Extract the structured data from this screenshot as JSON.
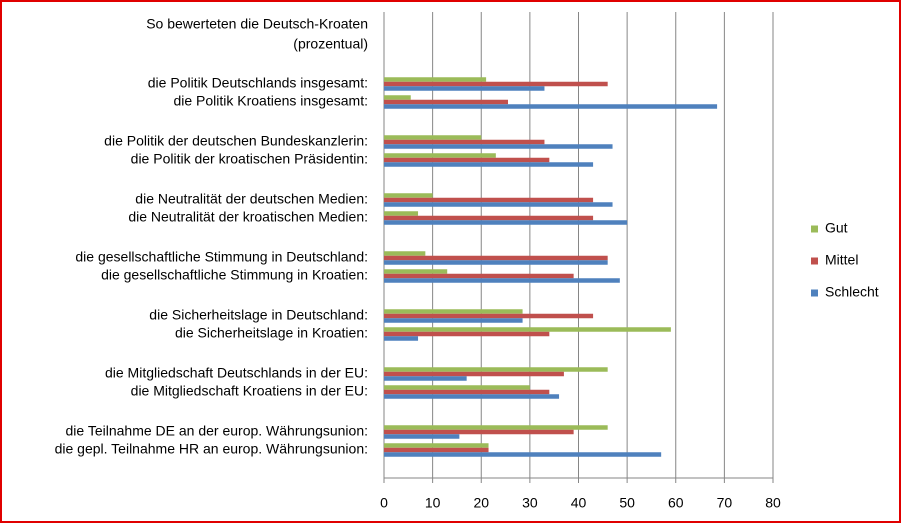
{
  "chart_data": {
    "type": "hbar",
    "title": "So bewerteten die Deutsch-Kroaten",
    "subtitle": "(prozentual)",
    "categories": [
      "die Politik Deutschlands insgesamt:",
      "die Politik Kroatiens insgesamt:",
      "die Politik der deutschen Bundeskanzlerin:",
      "die Politik der kroatischen Präsidentin:",
      "die Neutralität der deutschen Medien:",
      "die Neutralität der kroatischen Medien:",
      "die gesellschaftliche Stimmung in Deutschland:",
      "die gesellschaftliche Stimmung in Kroatien:",
      "die Sicherheitslage in Deutschland:",
      "die Sicherheitslage in Kroatien:",
      "die Mitgliedschaft Deutschlands in der EU:",
      "die Mitgliedschaft Kroatiens in der EU:",
      "die Teilnahme DE an der europ. Währungsunion:",
      "die gepl. Teilnahme HR an europ. Währungsunion:"
    ],
    "series": [
      {
        "name": "Gut",
        "color": "#9bbb59",
        "values": [
          21,
          5.5,
          20,
          23,
          10,
          7,
          8.5,
          13,
          28.5,
          59,
          46,
          30,
          46,
          21.5
        ]
      },
      {
        "name": "Mittel",
        "color": "#c0504d",
        "values": [
          46,
          25.5,
          33,
          34,
          43,
          43,
          46,
          39,
          43,
          34,
          37,
          34,
          39,
          21.5
        ]
      },
      {
        "name": "Schlecht",
        "color": "#4f81bd",
        "values": [
          33,
          68.5,
          47,
          43,
          47,
          50,
          46,
          48.5,
          28.5,
          7,
          17,
          36,
          15.5,
          57
        ]
      }
    ],
    "xlim": [
      0,
      80
    ],
    "xticks": [
      0,
      10,
      20,
      30,
      40,
      50,
      60,
      70,
      80
    ],
    "grid": true,
    "legend": "right"
  }
}
